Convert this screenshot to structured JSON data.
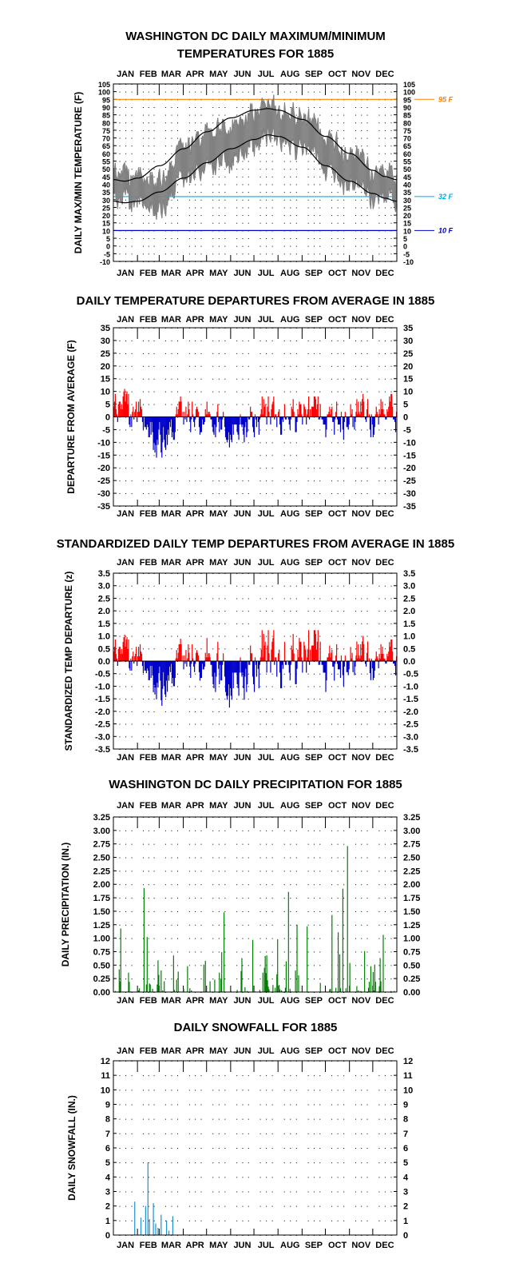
{
  "months": [
    "JAN",
    "FEB",
    "MAR",
    "APR",
    "MAY",
    "JUN",
    "JUL",
    "AUG",
    "SEP",
    "OCT",
    "NOV",
    "DEC"
  ],
  "colors": {
    "warm": "#ff0000",
    "cold": "#0000cc",
    "precip": "#008000",
    "snow": "#1f8fcf",
    "obs": "#808080",
    "normal": "#000000",
    "ref95": "#ff8000",
    "ref32": "#00aaee",
    "ref10": "#0000cc"
  },
  "chart_data": [
    {
      "type": "line",
      "title": "WASHINGTON DC DAILY MAXIMUM/MINIMUM\nTEMPERATURES FOR 1885",
      "ylabel": "DAILY MAX/MIN TEMPERATURE (F)",
      "ylim": [
        -10,
        105
      ],
      "yticks": [
        -10,
        -5,
        0,
        5,
        10,
        15,
        20,
        25,
        30,
        35,
        40,
        45,
        50,
        55,
        60,
        65,
        70,
        75,
        80,
        85,
        90,
        95,
        100,
        105
      ],
      "x": "day of year 1-365",
      "reference_lines": [
        {
          "label": "95 F",
          "value": 95
        },
        {
          "label": "32 F",
          "value": 32
        },
        {
          "label": "10 F",
          "value": 10
        }
      ],
      "series": [],
      "normal_max_anchors": [
        [
          1,
          43
        ],
        [
          15,
          42
        ],
        [
          32,
          44
        ],
        [
          60,
          52
        ],
        [
          91,
          63
        ],
        [
          121,
          74
        ],
        [
          152,
          83
        ],
        [
          182,
          88
        ],
        [
          200,
          89
        ],
        [
          213,
          88
        ],
        [
          244,
          82
        ],
        [
          274,
          71
        ],
        [
          305,
          60
        ],
        [
          335,
          49
        ],
        [
          350,
          45
        ],
        [
          365,
          43
        ]
      ],
      "normal_min_anchors": [
        [
          1,
          29
        ],
        [
          15,
          28
        ],
        [
          32,
          29
        ],
        [
          60,
          35
        ],
        [
          91,
          44
        ],
        [
          121,
          54
        ],
        [
          152,
          63
        ],
        [
          182,
          69
        ],
        [
          200,
          72
        ],
        [
          213,
          71
        ],
        [
          244,
          64
        ],
        [
          274,
          52
        ],
        [
          305,
          42
        ],
        [
          335,
          34
        ],
        [
          350,
          31
        ],
        [
          365,
          29
        ]
      ]
    },
    {
      "type": "bar",
      "title": "DAILY TEMPERATURE DEPARTURES FROM AVERAGE IN 1885",
      "ylabel": "DEPARTURE FROM AVERAGE (F)",
      "ylim": [
        -35,
        35
      ],
      "yticks": [
        -35,
        -30,
        -25,
        -20,
        -15,
        -10,
        -5,
        0,
        5,
        10,
        15,
        20,
        25,
        30,
        35
      ],
      "values": []
    },
    {
      "type": "bar",
      "title": "STANDARDIZED DAILY TEMP DEPARTURES FROM AVERAGE IN 1885",
      "ylabel": "STANDARDIZED TEMP DEPARTURE (z)",
      "ylim": [
        -3.5,
        3.5
      ],
      "yticks": [
        -3.5,
        -3.0,
        -2.5,
        -2.0,
        -1.5,
        -1.0,
        -0.5,
        0.0,
        0.5,
        1.0,
        1.5,
        2.0,
        2.5,
        3.0,
        3.5
      ],
      "values": []
    },
    {
      "type": "bar",
      "title": "WASHINGTON DC DAILY PRECIPITATION FOR 1885",
      "ylabel": "DAILY PRECIPITATION (IN.)",
      "ylim": [
        0,
        3.25
      ],
      "yticks": [
        0.0,
        0.25,
        0.5,
        0.75,
        1.0,
        1.25,
        1.5,
        1.75,
        2.0,
        2.25,
        2.5,
        2.75,
        3.0,
        3.25
      ],
      "values": []
    },
    {
      "type": "bar",
      "title": "DAILY SNOWFALL FOR 1885",
      "ylabel": "DAILY SNOWFALL (IN.)",
      "ylim": [
        0,
        12
      ],
      "yticks": [
        0,
        1,
        2,
        3,
        4,
        5,
        6,
        7,
        8,
        9,
        10,
        11,
        12
      ],
      "values": []
    }
  ]
}
